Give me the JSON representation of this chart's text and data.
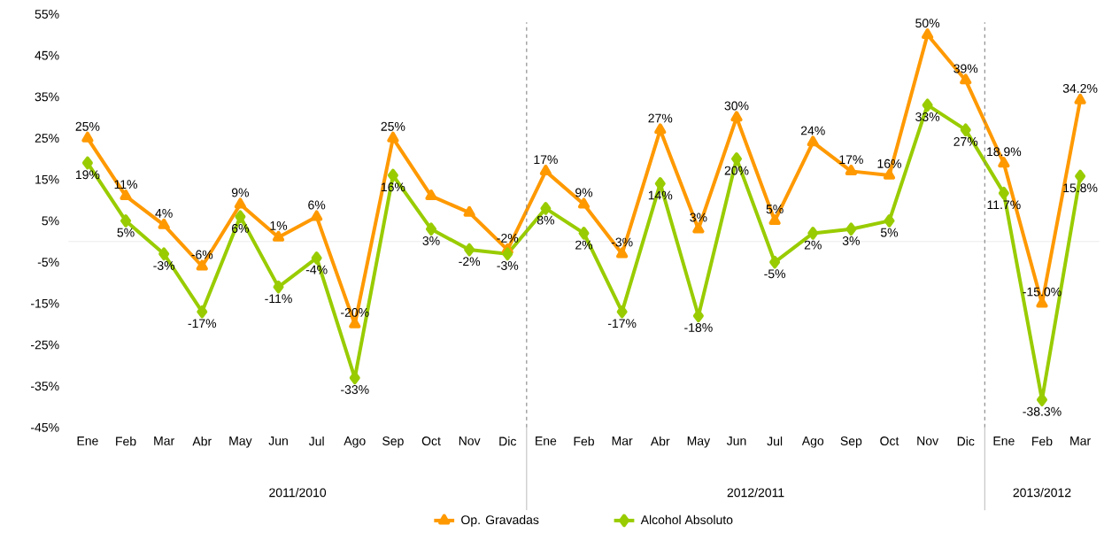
{
  "chart_data": {
    "type": "line",
    "categories": [
      "Ene",
      "Feb",
      "Mar",
      "Abr",
      "May",
      "Jun",
      "Jul",
      "Ago",
      "Sep",
      "Oct",
      "Nov",
      "Dic",
      "Ene",
      "Feb",
      "Mar",
      "Abr",
      "May",
      "Jun",
      "Jul",
      "Ago",
      "Sep",
      "Oct",
      "Nov",
      "Dic",
      "Ene",
      "Feb",
      "Mar"
    ],
    "series": [
      {
        "name": "Op. Gravadas",
        "color": "#ff9900",
        "marker": "triangle",
        "values": [
          25,
          11,
          4,
          -6,
          9,
          1,
          6,
          -20,
          25,
          11,
          7,
          -2,
          17,
          9,
          -3,
          27,
          3,
          30,
          5,
          24,
          17,
          16,
          50,
          39,
          18.9,
          -15.0,
          34.2
        ],
        "value_labels": [
          "25%",
          "11%",
          "4%",
          "-6%",
          "9%",
          "1%",
          "6%",
          "-20%",
          "25%",
          null,
          null,
          "-2%",
          "17%",
          "9%",
          "-3%",
          "27%",
          "3%",
          "30%",
          "5%",
          "24%",
          "17%",
          "16%",
          "50%",
          "39%",
          "18.9%",
          "-15.0%",
          "34.2%"
        ]
      },
      {
        "name": "Alcohol Absoluto",
        "color": "#99cc00",
        "marker": "diamond",
        "values": [
          19,
          5,
          -3,
          -17,
          6,
          -11,
          -4,
          -33,
          16,
          3,
          -2,
          -3,
          8,
          2,
          -17,
          14,
          -18,
          20,
          -5,
          2,
          3,
          5,
          33,
          27,
          11.7,
          -38.3,
          15.8
        ],
        "value_labels": [
          "19%",
          "5%",
          "-3%",
          "-17%",
          "6%",
          "-11%",
          "-4%",
          "-33%",
          "16%",
          "3%",
          "-2%",
          "-3%",
          "8%",
          "2%",
          "-17%",
          "14%",
          "-18%",
          "20%",
          "-5%",
          "2%",
          "3%",
          "5%",
          "33%",
          "27%",
          "11.7%",
          "-38.3%",
          "15.8%"
        ]
      }
    ],
    "ylim": [
      -45,
      55
    ],
    "yticks": [
      {
        "value": -45,
        "label": "-45%"
      },
      {
        "value": -35,
        "label": "-35%"
      },
      {
        "value": -25,
        "label": "-25%"
      },
      {
        "value": -15,
        "label": "-15%"
      },
      {
        "value": -5,
        "label": "-5%"
      },
      {
        "value": 5,
        "label": "5%"
      },
      {
        "value": 15,
        "label": "15%"
      },
      {
        "value": 25,
        "label": "25%"
      },
      {
        "value": 35,
        "label": "35%"
      },
      {
        "value": 45,
        "label": "45%"
      },
      {
        "value": 55,
        "label": "55%"
      }
    ],
    "annotations": [
      "2011/2010",
      "2012/2011",
      "2013/2012"
    ],
    "grid": false,
    "legend": "bottom",
    "line_style": "solid"
  }
}
